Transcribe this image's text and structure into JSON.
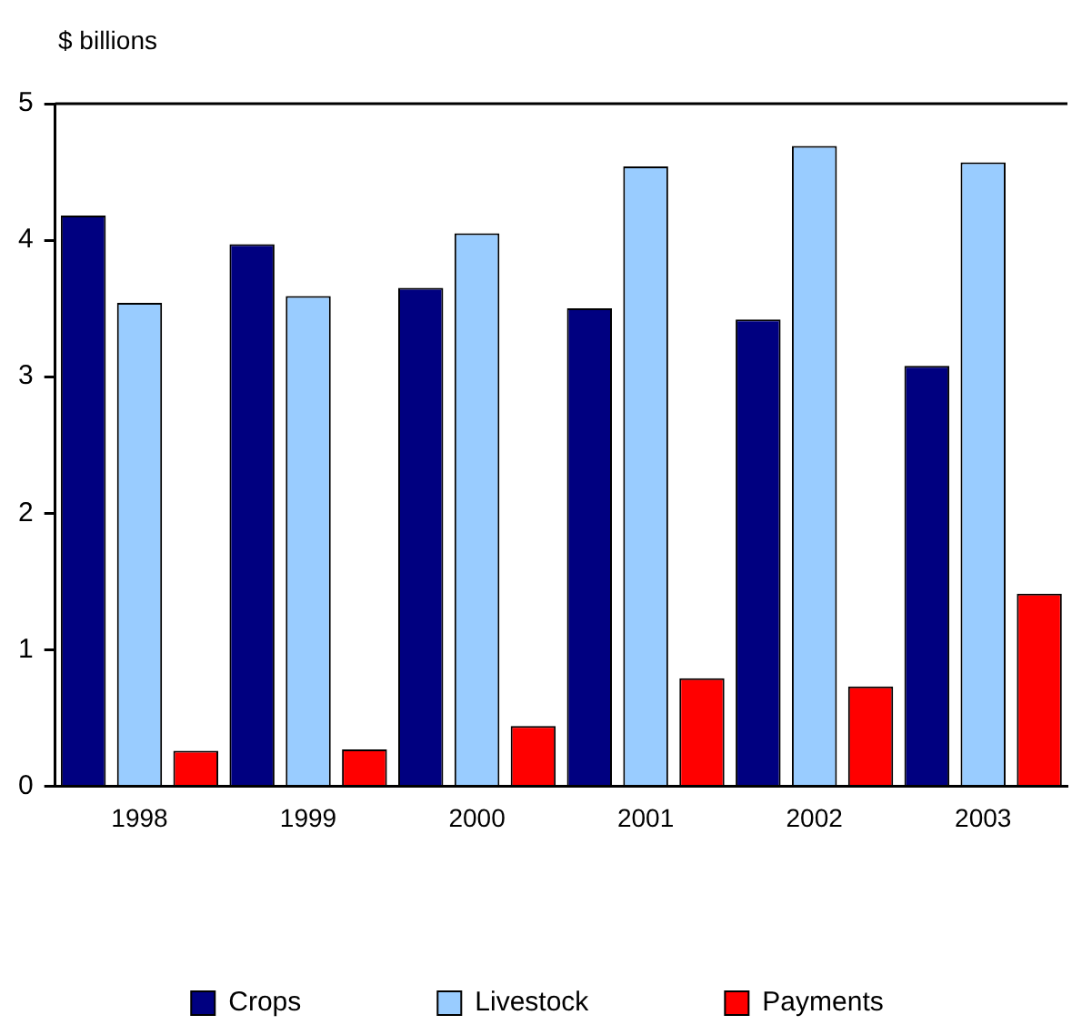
{
  "chart_data": {
    "type": "bar",
    "ylabel": "$ billions",
    "categories": [
      "1998",
      "1999",
      "2000",
      "2001",
      "2002",
      "2003"
    ],
    "series": [
      {
        "name": "Crops",
        "color": "#000080",
        "values": [
          4.18,
          3.97,
          3.65,
          3.5,
          3.42,
          3.08
        ]
      },
      {
        "name": "Livestock",
        "color": "#99ccff",
        "values": [
          3.54,
          3.59,
          4.05,
          4.54,
          4.69,
          4.57
        ]
      },
      {
        "name": "Payments",
        "color": "#ff0000",
        "values": [
          0.26,
          0.27,
          0.44,
          0.79,
          0.73,
          1.41
        ]
      }
    ],
    "ylim": [
      0,
      5
    ],
    "yticks": [
      0,
      1,
      2,
      3,
      4,
      5
    ],
    "grid": false,
    "legend": "bottom"
  }
}
